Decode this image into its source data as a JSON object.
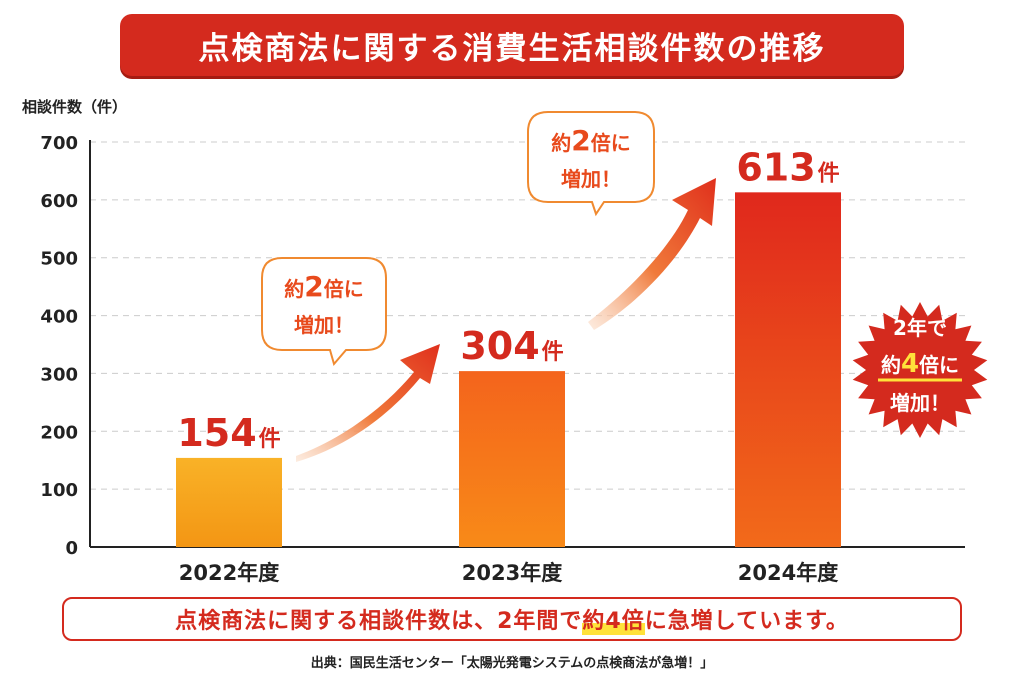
{
  "title": "点検商法に関する消費生活相談件数の推移",
  "chart_data": {
    "type": "bar",
    "ylabel": "相談件数（件）",
    "ylim": [
      0,
      700
    ],
    "yticks": [
      "0",
      "100",
      "200",
      "300",
      "400",
      "500",
      "600",
      "700"
    ],
    "grid": true,
    "categories": [
      "2022年度",
      "2023年度",
      "2024年度"
    ],
    "values": [
      154,
      304,
      613
    ],
    "data_labels": [
      {
        "number": "154",
        "unit": "件"
      },
      {
        "number": "304",
        "unit": "件"
      },
      {
        "number": "613",
        "unit": "件"
      }
    ],
    "colors": [
      "#f7a51c",
      "#f46a1c",
      "#e5321c"
    ],
    "callouts": [
      {
        "pre": "約",
        "num": "2",
        "post": "倍に",
        "line2": "増加！"
      },
      {
        "pre": "約",
        "num": "2",
        "post": "倍に",
        "line2": "増加！"
      }
    ],
    "burst": {
      "line1": "2年で",
      "pre": "約",
      "num": "4",
      "post": "倍に",
      "line3": "増加！"
    }
  },
  "footer": {
    "pre": "点検商法に関する相談件数は、2年間で",
    "highlight": "約4倍",
    "post": "に急増しています。"
  },
  "source": "出典：国民生活センター「太陽光発電システムの点検商法が急増！」"
}
